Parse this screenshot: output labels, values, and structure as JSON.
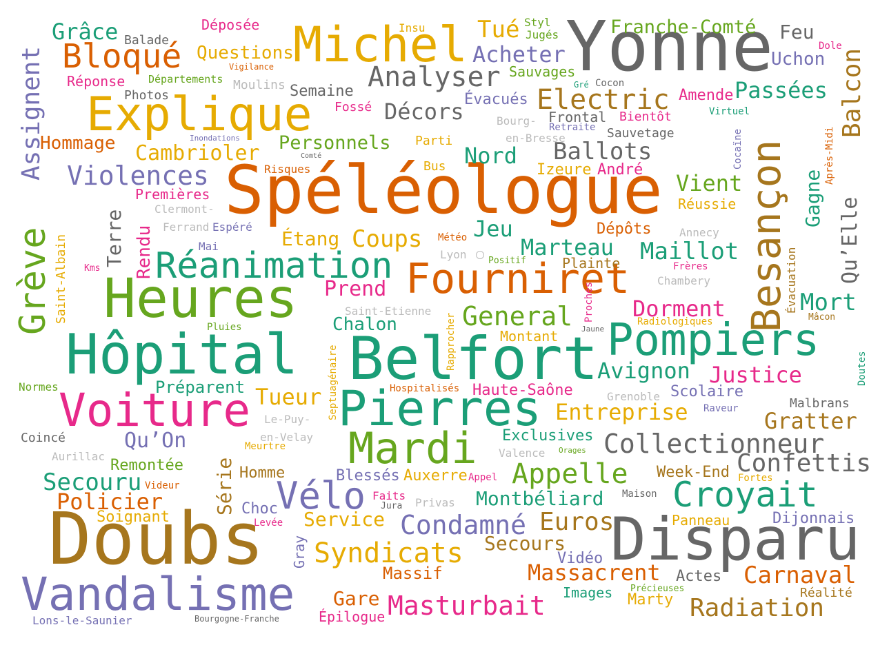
{
  "palette": {
    "teal": "#1b9e77",
    "orange": "#d95f02",
    "purple": "#7570b3",
    "magenta": "#e7298a",
    "green": "#66a61e",
    "gold": "#e6ab02",
    "brown": "#a6761d",
    "gray": "#666666",
    "lightgray": "#bbbbbb"
  },
  "words": [
    {
      "text": "Yonne",
      "color": "#666666"
    },
    {
      "text": "Spéléologue",
      "color": "#d95f02"
    },
    {
      "text": "Doubs",
      "color": "#a6761d"
    },
    {
      "text": "Disparu",
      "color": "#666666"
    },
    {
      "text": "Belfort",
      "color": "#1b9e77"
    },
    {
      "text": "Heures",
      "color": "#66a61e"
    },
    {
      "text": "Hôpital",
      "color": "#1b9e77"
    },
    {
      "text": "Vandalisme",
      "color": "#7570b3"
    },
    {
      "text": "Explique",
      "color": "#e6ab02"
    },
    {
      "text": "Michel",
      "color": "#e6ab02"
    },
    {
      "text": "Pierres",
      "color": "#1b9e77"
    },
    {
      "text": "Pompiers",
      "color": "#1b9e77"
    },
    {
      "text": "Voiture",
      "color": "#e7298a"
    },
    {
      "text": "Fourniret",
      "color": "#d95f02"
    },
    {
      "text": "Réanimation",
      "color": "#1b9e77"
    },
    {
      "text": "Mardi",
      "color": "#66a61e"
    },
    {
      "text": "Croyait",
      "color": "#1b9e77"
    },
    {
      "text": "Vélo",
      "color": "#7570b3"
    },
    {
      "text": "Bloqué",
      "color": "#d95f02"
    },
    {
      "text": "Analyser",
      "color": "#666666"
    },
    {
      "text": "Electric",
      "color": "#a6761d"
    },
    {
      "text": "Collectionneur",
      "color": "#666666"
    },
    {
      "text": "Confettis",
      "color": "#666666"
    },
    {
      "text": "Appelle",
      "color": "#66a61e"
    },
    {
      "text": "Masturbait",
      "color": "#e7298a"
    },
    {
      "text": "Radiation",
      "color": "#a6761d"
    },
    {
      "text": "Syndicats",
      "color": "#e6ab02"
    },
    {
      "text": "Condamné",
      "color": "#7570b3"
    },
    {
      "text": "Massacrent",
      "color": "#d95f02"
    },
    {
      "text": "Violences",
      "color": "#7570b3"
    },
    {
      "text": "Cambrioler",
      "color": "#e6ab02"
    },
    {
      "text": "Hommage",
      "color": "#d95f02"
    },
    {
      "text": "Personnels",
      "color": "#66a61e"
    },
    {
      "text": "Décors",
      "color": "#666666"
    },
    {
      "text": "Acheter",
      "color": "#7570b3"
    },
    {
      "text": "Ballots",
      "color": "#666666"
    },
    {
      "text": "Passées",
      "color": "#1b9e77"
    },
    {
      "text": "Franche-Comté",
      "color": "#66a61e"
    },
    {
      "text": "Grâce",
      "color": "#1b9e77"
    },
    {
      "text": "Questions",
      "color": "#e6ab02"
    },
    {
      "text": "Tué",
      "color": "#e6ab02"
    },
    {
      "text": "Feu",
      "color": "#666666"
    },
    {
      "text": "Uchon",
      "color": "#7570b3"
    },
    {
      "text": "Sauvages",
      "color": "#66a61e"
    },
    {
      "text": "Semaine",
      "color": "#666666"
    },
    {
      "text": "Évacués",
      "color": "#7570b3"
    },
    {
      "text": "Amende",
      "color": "#e7298a"
    },
    {
      "text": "Nord",
      "color": "#1b9e77"
    },
    {
      "text": "Izeure",
      "color": "#e6ab02"
    },
    {
      "text": "André",
      "color": "#e7298a"
    },
    {
      "text": "Vient",
      "color": "#66a61e"
    },
    {
      "text": "Réussie",
      "color": "#e6ab02"
    },
    {
      "text": "Jeu",
      "color": "#1b9e77"
    },
    {
      "text": "Coups",
      "color": "#e6ab02"
    },
    {
      "text": "Étang",
      "color": "#e6ab02"
    },
    {
      "text": "Marteau",
      "color": "#1b9e77"
    },
    {
      "text": "Maillot",
      "color": "#1b9e77"
    },
    {
      "text": "Dépôts",
      "color": "#d95f02"
    },
    {
      "text": "Plainte",
      "color": "#a6761d"
    },
    {
      "text": "Prend",
      "color": "#e7298a"
    },
    {
      "text": "Dorment",
      "color": "#e7298a"
    },
    {
      "text": "Mort",
      "color": "#1b9e77"
    },
    {
      "text": "General",
      "color": "#66a61e"
    },
    {
      "text": "Chalon",
      "color": "#1b9e77"
    },
    {
      "text": "Montant",
      "color": "#e6ab02"
    },
    {
      "text": "Avignon",
      "color": "#1b9e77"
    },
    {
      "text": "Justice",
      "color": "#e7298a"
    },
    {
      "text": "Préparent",
      "color": "#1b9e77"
    },
    {
      "text": "Tueur",
      "color": "#e6ab02"
    },
    {
      "text": "Haute-Saône",
      "color": "#e7298a"
    },
    {
      "text": "Entreprise",
      "color": "#e6ab02"
    },
    {
      "text": "Scolaire",
      "color": "#7570b3"
    },
    {
      "text": "Gratter",
      "color": "#a6761d"
    },
    {
      "text": "Qu’On",
      "color": "#7570b3"
    },
    {
      "text": "Exclusives",
      "color": "#1b9e77"
    },
    {
      "text": "Secouru",
      "color": "#1b9e77"
    },
    {
      "text": "Policier",
      "color": "#d95f02"
    },
    {
      "text": "Remontée",
      "color": "#66a61e"
    },
    {
      "text": "Homme",
      "color": "#a6761d"
    },
    {
      "text": "Blessés",
      "color": "#7570b3"
    },
    {
      "text": "Auxerre",
      "color": "#e6ab02"
    },
    {
      "text": "Montbéliard",
      "color": "#1b9e77"
    },
    {
      "text": "Euros",
      "color": "#a6761d"
    },
    {
      "text": "Week-End",
      "color": "#a6761d"
    },
    {
      "text": "Service",
      "color": "#e6ab02"
    },
    {
      "text": "Choc",
      "color": "#7570b3"
    },
    {
      "text": "Soignant",
      "color": "#e6ab02"
    },
    {
      "text": "Secours",
      "color": "#a6761d"
    },
    {
      "text": "Vidéo",
      "color": "#7570b3"
    },
    {
      "text": "Massif",
      "color": "#d95f02"
    },
    {
      "text": "Gare",
      "color": "#d95f02"
    },
    {
      "text": "Carnaval",
      "color": "#d95f02"
    },
    {
      "text": "Actes",
      "color": "#666666"
    },
    {
      "text": "Images",
      "color": "#1b9e77"
    },
    {
      "text": "Marty",
      "color": "#e6ab02"
    },
    {
      "text": "Dijonnais",
      "color": "#7570b3"
    },
    {
      "text": "Panneau",
      "color": "#e6ab02"
    },
    {
      "text": "Réalité",
      "color": "#a6761d"
    },
    {
      "text": "Épilogue",
      "color": "#e7298a"
    },
    {
      "text": "Lons-le-Saunier",
      "color": "#7570b3"
    },
    {
      "text": "Bourgogne-Franche",
      "color": "#666666"
    },
    {
      "text": "Balade",
      "color": "#666666"
    },
    {
      "text": "Déposée",
      "color": "#e7298a"
    },
    {
      "text": "Insu",
      "color": "#e6ab02"
    },
    {
      "text": "Styl",
      "color": "#66a61e"
    },
    {
      "text": "Jugés",
      "color": "#66a61e"
    },
    {
      "text": "Réponse",
      "color": "#e7298a"
    },
    {
      "text": "Départements",
      "color": "#66a61e"
    },
    {
      "text": "Vigilance",
      "color": "#d95f02"
    },
    {
      "text": "Moulins",
      "color": "#bbbbbb"
    },
    {
      "text": "Photos",
      "color": "#666666"
    },
    {
      "text": "Fossé",
      "color": "#e7298a"
    },
    {
      "text": "Frontal",
      "color": "#666666"
    },
    {
      "text": "Bientôt",
      "color": "#e7298a"
    },
    {
      "text": "Virtuel",
      "color": "#1b9e77"
    },
    {
      "text": "Cocon",
      "color": "#666666"
    },
    {
      "text": "Gré",
      "color": "#1b9e77"
    },
    {
      "text": "Dole",
      "color": "#e7298a"
    },
    {
      "text": "Bourg-",
      "color": "#bbbbbb"
    },
    {
      "text": "en-Bresse",
      "color": "#bbbbbb"
    },
    {
      "text": "Retraite",
      "color": "#7570b3"
    },
    {
      "text": "Sauvetage",
      "color": "#666666"
    },
    {
      "text": "Inondations",
      "color": "#7570b3"
    },
    {
      "text": "Comté",
      "color": "#666666"
    },
    {
      "text": "Parti",
      "color": "#e6ab02"
    },
    {
      "text": "Risques",
      "color": "#d95f02"
    },
    {
      "text": "Bus",
      "color": "#e6ab02"
    },
    {
      "text": "Premières",
      "color": "#e7298a"
    },
    {
      "text": "Clermont-",
      "color": "#bbbbbb"
    },
    {
      "text": "Ferrand",
      "color": "#bbbbbb"
    },
    {
      "text": "Espéré",
      "color": "#7570b3"
    },
    {
      "text": "Mai",
      "color": "#7570b3"
    },
    {
      "text": "Météo",
      "color": "#d95f02"
    },
    {
      "text": "Lyon",
      "color": "#bbbbbb"
    },
    {
      "text": "Positif",
      "color": "#66a61e"
    },
    {
      "text": "Annecy",
      "color": "#bbbbbb"
    },
    {
      "text": "Frères",
      "color": "#e7298a"
    },
    {
      "text": "Chambery",
      "color": "#bbbbbb"
    },
    {
      "text": "Kms",
      "color": "#e7298a"
    },
    {
      "text": "Saint-Etienne",
      "color": "#bbbbbb"
    },
    {
      "text": "Radiologiques",
      "color": "#e6ab02"
    },
    {
      "text": "Mâcon",
      "color": "#a6761d"
    },
    {
      "text": "Pluies",
      "color": "#66a61e"
    },
    {
      "text": "Jaune",
      "color": "#666666"
    },
    {
      "text": "Normes",
      "color": "#66a61e"
    },
    {
      "text": "Hospitalisés",
      "color": "#d95f02"
    },
    {
      "text": "Grenoble",
      "color": "#bbbbbb"
    },
    {
      "text": "Malbrans",
      "color": "#666666"
    },
    {
      "text": "Raveur",
      "color": "#7570b3"
    },
    {
      "text": "Le-Puy-",
      "color": "#bbbbbb"
    },
    {
      "text": "en-Velay",
      "color": "#bbbbbb"
    },
    {
      "text": "Coincé",
      "color": "#666666"
    },
    {
      "text": "Aurillac",
      "color": "#bbbbbb"
    },
    {
      "text": "Meurtre",
      "color": "#e6ab02"
    },
    {
      "text": "Valence",
      "color": "#bbbbbb"
    },
    {
      "text": "Orages",
      "color": "#66a61e"
    },
    {
      "text": "Fortes",
      "color": "#e6ab02"
    },
    {
      "text": "Videur",
      "color": "#d95f02"
    },
    {
      "text": "Appel",
      "color": "#e7298a"
    },
    {
      "text": "Maison",
      "color": "#666666"
    },
    {
      "text": "Faits",
      "color": "#e7298a"
    },
    {
      "text": "Jura",
      "color": "#666666"
    },
    {
      "text": "Privas",
      "color": "#bbbbbb"
    },
    {
      "text": "Levée",
      "color": "#e7298a"
    },
    {
      "text": "Précieuses",
      "color": "#66a61e"
    },
    {
      "text": "Assignent",
      "color": "#7570b3"
    },
    {
      "text": "Grève",
      "color": "#66a61e"
    },
    {
      "text": "Saint-Albain",
      "color": "#e6ab02"
    },
    {
      "text": "Terre",
      "color": "#666666"
    },
    {
      "text": "Rendu",
      "color": "#e7298a"
    },
    {
      "text": "Série",
      "color": "#a6761d"
    },
    {
      "text": "Gray",
      "color": "#7570b3"
    },
    {
      "text": "Septuagénaire",
      "color": "#e6ab02"
    },
    {
      "text": "Rapprocher",
      "color": "#e6ab02"
    },
    {
      "text": "Proches",
      "color": "#e7298a"
    },
    {
      "text": "Besançon",
      "color": "#a6761d"
    },
    {
      "text": "Balcon",
      "color": "#a6761d"
    },
    {
      "text": "Gagne",
      "color": "#1b9e77"
    },
    {
      "text": "Qu’Elle",
      "color": "#666666"
    },
    {
      "text": "Évacuation",
      "color": "#a6761d"
    },
    {
      "text": "Après-Midi",
      "color": "#d95f02"
    },
    {
      "text": "Cocaïne",
      "color": "#7570b3"
    },
    {
      "text": "Doutes",
      "color": "#1b9e77"
    }
  ]
}
